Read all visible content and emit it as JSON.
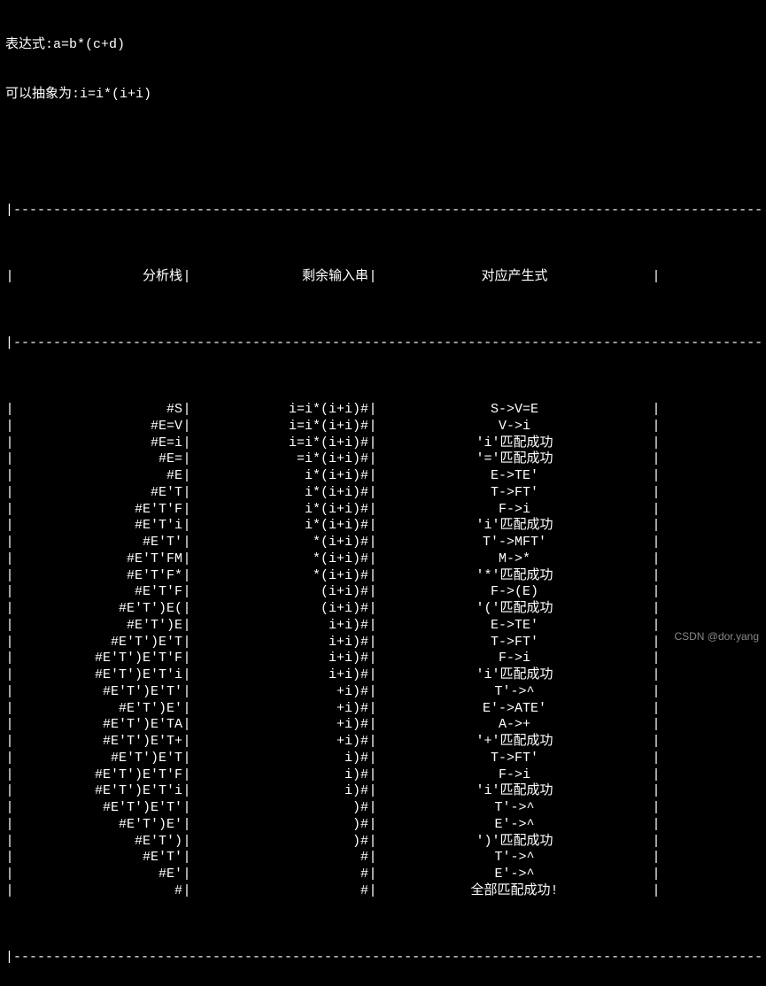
{
  "header": {
    "line1": "表达式:a=b*(c+d)",
    "line2": "可以抽象为:i=i*(i+i)"
  },
  "columns": {
    "stack_header": "分析栈",
    "input_header": "剩余输入串",
    "prod_header": "对应产生式"
  },
  "divider_top": "|----------------------------------------------------------------------------------------------|",
  "divider_hdr": "|----------------------------------------------------------------------------------------------|",
  "divider_bot": "|----------------------------------------------------------------------------------------------|",
  "rows": [
    {
      "stack": "#S",
      "input": "i=i*(i+i)#",
      "prod": "S->V=E"
    },
    {
      "stack": "#E=V",
      "input": "i=i*(i+i)#",
      "prod": "V->i"
    },
    {
      "stack": "#E=i",
      "input": "i=i*(i+i)#",
      "prod": "'i'匹配成功"
    },
    {
      "stack": "#E=",
      "input": "=i*(i+i)#",
      "prod": "'='匹配成功"
    },
    {
      "stack": "#E",
      "input": "i*(i+i)#",
      "prod": "E->TE'"
    },
    {
      "stack": "#E'T",
      "input": "i*(i+i)#",
      "prod": "T->FT'"
    },
    {
      "stack": "#E'T'F",
      "input": "i*(i+i)#",
      "prod": "F->i"
    },
    {
      "stack": "#E'T'i",
      "input": "i*(i+i)#",
      "prod": "'i'匹配成功"
    },
    {
      "stack": "#E'T'",
      "input": "*(i+i)#",
      "prod": "T'->MFT'"
    },
    {
      "stack": "#E'T'FM",
      "input": "*(i+i)#",
      "prod": "M->*"
    },
    {
      "stack": "#E'T'F*",
      "input": "*(i+i)#",
      "prod": "'*'匹配成功"
    },
    {
      "stack": "#E'T'F",
      "input": "(i+i)#",
      "prod": "F->(E)"
    },
    {
      "stack": "#E'T')E(",
      "input": "(i+i)#",
      "prod": "'('匹配成功"
    },
    {
      "stack": "#E'T')E",
      "input": "i+i)#",
      "prod": "E->TE'"
    },
    {
      "stack": "#E'T')E'T",
      "input": "i+i)#",
      "prod": "T->FT'"
    },
    {
      "stack": "#E'T')E'T'F",
      "input": "i+i)#",
      "prod": "F->i"
    },
    {
      "stack": "#E'T')E'T'i",
      "input": "i+i)#",
      "prod": "'i'匹配成功"
    },
    {
      "stack": "#E'T')E'T'",
      "input": "+i)#",
      "prod": "T'->^"
    },
    {
      "stack": "#E'T')E'",
      "input": "+i)#",
      "prod": "E'->ATE'"
    },
    {
      "stack": "#E'T')E'TA",
      "input": "+i)#",
      "prod": "A->+"
    },
    {
      "stack": "#E'T')E'T+",
      "input": "+i)#",
      "prod": "'+'匹配成功"
    },
    {
      "stack": "#E'T')E'T",
      "input": "i)#",
      "prod": "T->FT'"
    },
    {
      "stack": "#E'T')E'T'F",
      "input": "i)#",
      "prod": "F->i"
    },
    {
      "stack": "#E'T')E'T'i",
      "input": "i)#",
      "prod": "'i'匹配成功"
    },
    {
      "stack": "#E'T')E'T'",
      "input": ")#",
      "prod": "T'->^"
    },
    {
      "stack": "#E'T')E'",
      "input": ")#",
      "prod": "E'->^"
    },
    {
      "stack": "#E'T')",
      "input": ")#",
      "prod": "')'匹配成功"
    },
    {
      "stack": "#E'T'",
      "input": "#",
      "prod": "T'->^"
    },
    {
      "stack": "#E'",
      "input": "#",
      "prod": "E'->^"
    },
    {
      "stack": "#",
      "input": "#",
      "prod": "全部匹配成功!"
    }
  ],
  "watermark": "CSDN @dor.yang",
  "colors": {
    "bg": "#000000",
    "fg": "#ffffff",
    "watermark": "#888888"
  }
}
